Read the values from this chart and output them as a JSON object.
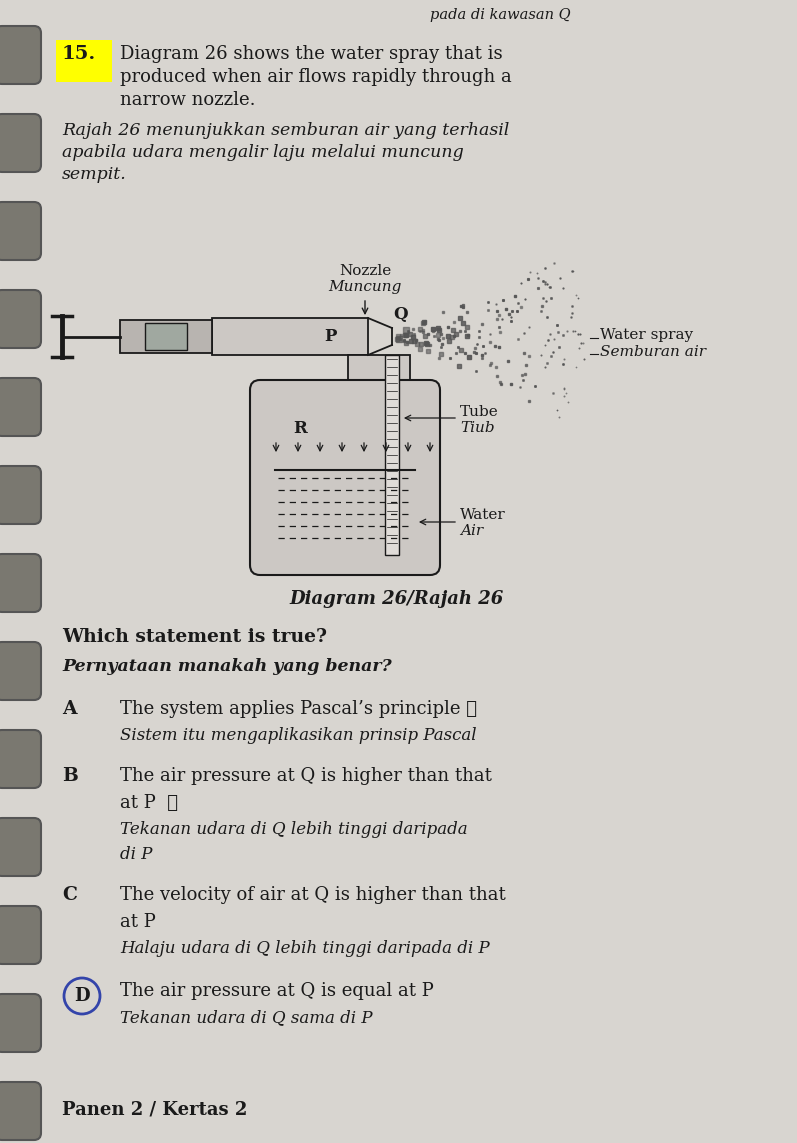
{
  "page_bg": "#d8d5d0",
  "line_color": "#1a1a1a",
  "text_color": "#1a1a1a",
  "top_text": "pada di kawasan Q",
  "question_num": "15.",
  "question_num_highlight": "#ffff00",
  "q_text_en_line1": "Diagram 26 shows the water spray that is",
  "q_text_en_line2": "produced when air flows rapidly through a",
  "q_text_en_line3": "narrow nozzle.",
  "q_text_ms_line1": "Rajah 26 menunjukkan semburan air yang terhasil",
  "q_text_ms_line2": "apabila udara mengalir laju melalui muncung",
  "q_text_ms_line3": "sempit.",
  "nozzle_label_en": "Nozzle",
  "nozzle_label_ms": "Muncung",
  "label_P": "P",
  "label_Q": "Q",
  "label_R": "R",
  "label_tube_en": "Tube",
  "label_tube_ms": "Tiub",
  "label_waterspray_en": "Water spray",
  "label_waterspray_ms": "Semburan air",
  "label_water_en": "Water",
  "label_water_ms": "Air",
  "diagram_caption": "Diagram 26/Rajah 26",
  "which_statement_en": "Which statement is true?",
  "which_statement_ms": "Pernyataan manakah yang benar?",
  "opt_A_letter": "A",
  "opt_A_en": "The system applies Pascal’s principle ✘",
  "opt_A_ms": "Sistem itu mengaplikasikan prinsip Pascal",
  "opt_B_letter": "B",
  "opt_B_en1": "The air pressure at Q is higher than that",
  "opt_B_en2": "at P  ✘",
  "opt_B_ms1": "Tekanan udara di Q lebih tinggi daripada",
  "opt_B_ms2": "di P",
  "opt_C_letter": "C",
  "opt_C_en1": "The velocity of air at Q is higher than that",
  "opt_C_en2": "at P",
  "opt_C_ms": "Halaju udara di Q lebih tinggi daripada di P",
  "opt_D_letter": "D",
  "opt_D_en": "The air pressure at Q is equal at P",
  "opt_D_ms": "Tekanan udara di Q sama di P",
  "bottom_text": "Panen 2 / Kertas 2"
}
